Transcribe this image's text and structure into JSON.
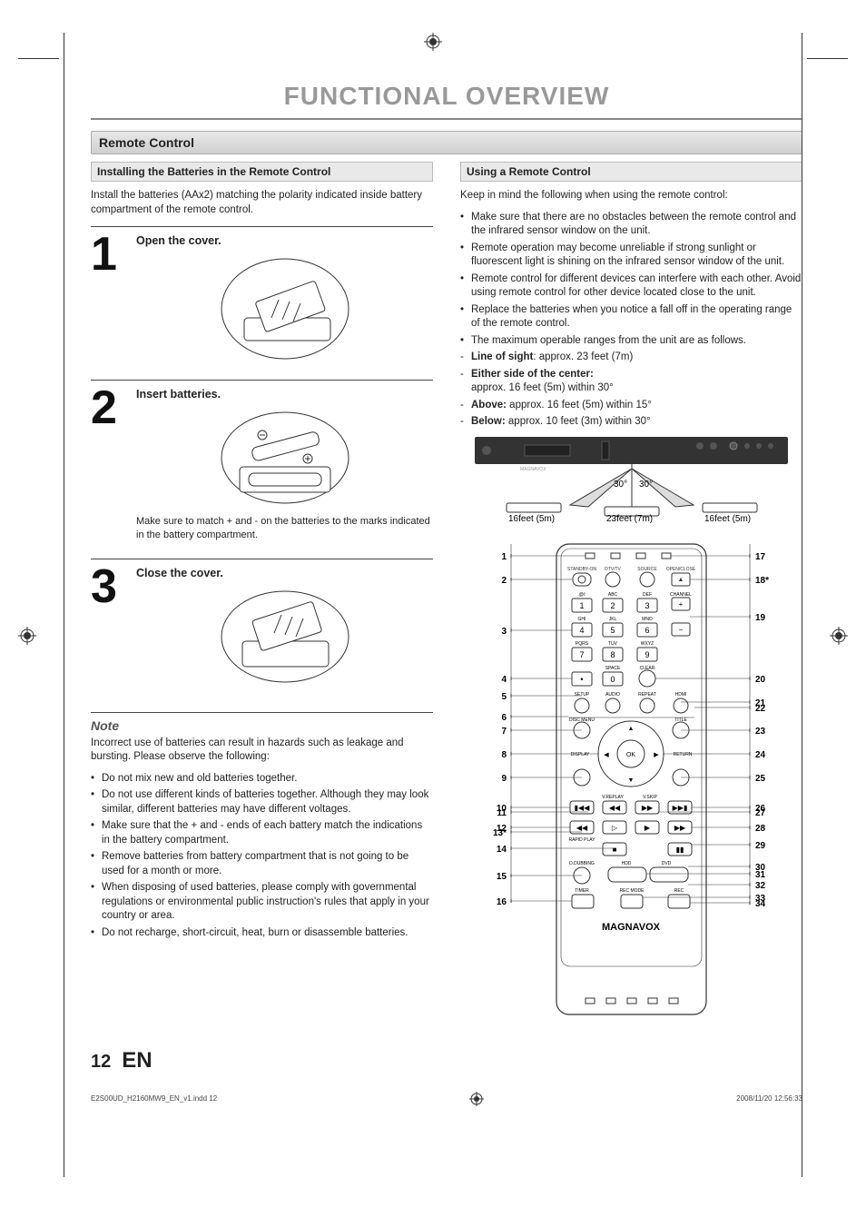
{
  "page": {
    "title": "FUNCTIONAL OVERVIEW",
    "number": "12",
    "lang": "EN",
    "footer_file": "E2S00UD_H2160MW9_EN_v1.indd   12",
    "footer_date": "2008/11/20   12:56:33"
  },
  "section": {
    "heading": "Remote Control"
  },
  "left": {
    "sub_heading": "Installing the Batteries in the Remote Control",
    "intro": "Install the batteries (AAx2) matching the polarity indicated inside battery compartment of the remote control.",
    "steps": [
      {
        "n": "1",
        "title": "Open the cover.",
        "caption": ""
      },
      {
        "n": "2",
        "title": "Insert batteries.",
        "caption": "Make sure to match + and - on the batteries to the marks indicated in the battery compartment."
      },
      {
        "n": "3",
        "title": "Close the cover.",
        "caption": ""
      }
    ],
    "note_title": "Note",
    "note_intro": "Incorrect use of batteries can result in hazards such as leakage and bursting. Please observe the following:",
    "note_items": [
      "Do not mix new and old batteries together.",
      "Do not use different kinds of batteries together. Although they may look similar, different batteries may have different voltages.",
      "Make sure that the + and - ends of each battery match the indications in the battery compartment.",
      "Remove batteries from battery compartment that is not going to be used for a month or more.",
      "When disposing of used batteries, please comply with governmental regulations or environmental public instruction's rules that apply in your country or area.",
      "Do not recharge, short-circuit, heat, burn or disassemble batteries."
    ]
  },
  "right": {
    "sub_heading": "Using a Remote Control",
    "intro": "Keep in mind the following when using the remote control:",
    "items": [
      "Make sure that there are no obstacles between the remote control and the infrared sensor window on the unit.",
      "Remote operation may become unreliable if strong sunlight or fluorescent light is shining on the infrared sensor window of the unit.",
      "Remote control for different devices can interfere with each other. Avoid using remote control for other device located close to the unit.",
      "Replace the batteries when you notice a fall off in the operating range of the remote control.",
      "The maximum operable ranges from the unit are as follows."
    ],
    "ranges": {
      "los_label": "Line of sight",
      "los_val": ": approx. 23 feet (7m)",
      "side_label": "Either side of the center:",
      "side_val": "approx. 16 feet (5m) within 30°",
      "above_label": "Above:",
      "above_val": "  approx. 16 feet (5m) within 15°",
      "below_label": "Below:",
      "below_val": "  approx. 10 feet (3m) within 30°"
    },
    "diagram": {
      "angle": "30°",
      "d1": "16feet (5m)",
      "d2": "23feet (7m)",
      "d3": "16feet (5m)"
    },
    "remote": {
      "brand": "MAGNAVOX",
      "labels": {
        "standby": "STANDBY-ON",
        "dtv": "DTV/TV",
        "source": "SOURCE",
        "open": "OPEN/CLOSE",
        "abc": ".@/:",
        "def": "ABC",
        "ghi": "DEF",
        "channel": "CHANNEL",
        "jkl": "GHI",
        "mno": "JKL",
        "pqrs": "MNO",
        "tuv": "PQRS",
        "wxyz": "TUV",
        "sp1": "WXYZ",
        "space": "SPACE",
        "clear": "CLEAR",
        "setup": "SETUP",
        "audio": "AUDIO",
        "repeat": "REPEAT",
        "hdmi": "HDMI",
        "disc": "DISC MENU",
        "title": "TITLE",
        "display": "DISPLAY",
        "ok": "OK",
        "return": "RETURN",
        "vreplay": "V.REPLAY",
        "vskip": "V.SKIP",
        "rapid": "RAPID PLAY",
        "dubbing": "D.DUBBING",
        "hdd": "HDD",
        "dvd": "DVD",
        "timer": "TIMER",
        "recmode": "REC MODE",
        "rec": "REC"
      },
      "callouts_left": [
        "1",
        "2",
        "3",
        "4",
        "5",
        "6",
        "7",
        "8",
        "9",
        "10",
        "11",
        "12",
        "13*",
        "14",
        "15",
        "16"
      ],
      "callouts_right": [
        "17",
        "18*",
        "19",
        "20",
        "21",
        "22",
        "23",
        "24",
        "25",
        "26",
        "27",
        "28",
        "29",
        "30",
        "31",
        "32",
        "33",
        "34"
      ]
    }
  }
}
